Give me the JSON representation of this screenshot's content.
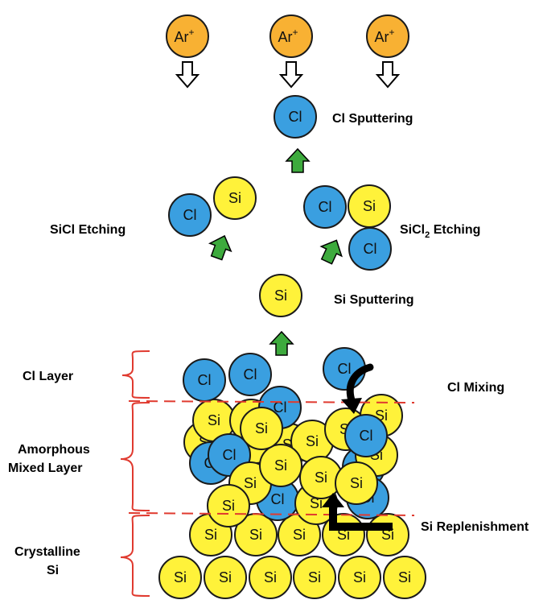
{
  "colors": {
    "ar_fill": "#F8B133",
    "cl_fill": "#3A9FE0",
    "si_fill": "#FFF23A",
    "atom_stroke": "#1a1a1a",
    "up_arrow": "#3DAA3D",
    "layer_line": "#E03A2F",
    "black_arrow": "#000000"
  },
  "icons": {
    "ion": "argon-ion-circle",
    "down_arrow": "hollow-down-arrow-icon",
    "up_arrow": "green-up-arrow-icon",
    "mixing_arrow": "curved-black-arrow-icon",
    "replenish_arrow": "bent-black-arrow-icon"
  },
  "ions": {
    "base": "Ar",
    "charge": "+",
    "count": 3
  },
  "atoms": {
    "cl": "Cl",
    "si": "Si"
  },
  "process_labels": {
    "cl_sputtering": "Cl Sputtering",
    "sicl_etching": "SiCl Etching",
    "sicl2_etching_prefix": "SiCl",
    "sicl2_etching_sub": "2",
    "sicl2_etching_suffix": " Etching",
    "si_sputtering": "Si Sputtering",
    "cl_mixing": "Cl Mixing",
    "si_replenishment": "Si Replenishment"
  },
  "layer_labels": {
    "cl_layer": "Cl Layer",
    "amorphous_line1": "Amorphous",
    "amorphous_line2": "Mixed Layer",
    "crystalline_line1": "Crystalline",
    "crystalline_line2": "Si"
  }
}
